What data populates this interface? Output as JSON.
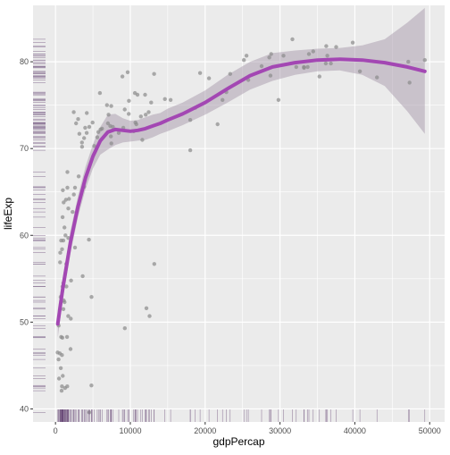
{
  "chart_data": {
    "type": "scatter",
    "title": "",
    "xlabel": "gdpPercap",
    "ylabel": "lifeExp",
    "xlim": [
      -3000,
      52000
    ],
    "ylim": [
      38.5,
      86.5
    ],
    "x_ticks": [
      0,
      10000,
      20000,
      30000,
      40000,
      50000
    ],
    "x_tick_labels": [
      "0",
      "10000",
      "20000",
      "30000",
      "40000",
      "50000"
    ],
    "y_ticks": [
      40,
      50,
      60,
      70,
      80
    ],
    "y_tick_labels": [
      "40",
      "50",
      "60",
      "70",
      "80"
    ],
    "grid": true,
    "legend": "none",
    "colors": {
      "panel": "#ebebeb",
      "grid": "#ffffff",
      "points": "#8a8a8a",
      "smooth_line": "#a347b3",
      "ribbon": "#a090a4",
      "rug": "#5e3c6e",
      "axis_text": "#4d4d4d",
      "axis_title": "#000000"
    },
    "points": [
      {
        "x": 975,
        "y": 43.8
      },
      {
        "x": 5937,
        "y": 76.4
      },
      {
        "x": 6223,
        "y": 72.3
      },
      {
        "x": 4797,
        "y": 42.7
      },
      {
        "x": 12779,
        "y": 75.3
      },
      {
        "x": 34435,
        "y": 81.2
      },
      {
        "x": 36126,
        "y": 79.8
      },
      {
        "x": 29796,
        "y": 75.6
      },
      {
        "x": 1391,
        "y": 64.1
      },
      {
        "x": 33693,
        "y": 79.4
      },
      {
        "x": 1441,
        "y": 56.7
      },
      {
        "x": 3822,
        "y": 65.6
      },
      {
        "x": 7446,
        "y": 74.9
      },
      {
        "x": 12570,
        "y": 50.7
      },
      {
        "x": 9065,
        "y": 72.4
      },
      {
        "x": 10680,
        "y": 73.0
      },
      {
        "x": 1217,
        "y": 52.3
      },
      {
        "x": 430,
        "y": 49.6
      },
      {
        "x": 1713,
        "y": 59.7
      },
      {
        "x": 2042,
        "y": 50.4
      },
      {
        "x": 36319,
        "y": 80.7
      },
      {
        "x": 706,
        "y": 44.7
      },
      {
        "x": 1704,
        "y": 50.7
      },
      {
        "x": 13172,
        "y": 78.6
      },
      {
        "x": 4959,
        "y": 73.0
      },
      {
        "x": 7007,
        "y": 72.9
      },
      {
        "x": 986,
        "y": 65.2
      },
      {
        "x": 278,
        "y": 46.5
      },
      {
        "x": 3633,
        "y": 55.3
      },
      {
        "x": 9645,
        "y": 78.8
      },
      {
        "x": 1544,
        "y": 48.3
      },
      {
        "x": 14619,
        "y": 75.7
      },
      {
        "x": 8948,
        "y": 78.3
      },
      {
        "x": 22833,
        "y": 76.5
      },
      {
        "x": 35278,
        "y": 78.3
      },
      {
        "x": 2082,
        "y": 54.8
      },
      {
        "x": 6025,
        "y": 72.2
      },
      {
        "x": 6873,
        "y": 75.0
      },
      {
        "x": 5581,
        "y": 71.3
      },
      {
        "x": 5728,
        "y": 71.9
      },
      {
        "x": 12154,
        "y": 51.6
      },
      {
        "x": 641,
        "y": 58.0
      },
      {
        "x": 690,
        "y": 52.9
      },
      {
        "x": 33207,
        "y": 79.3
      },
      {
        "x": 30470,
        "y": 80.7
      },
      {
        "x": 13206,
        "y": 56.7
      },
      {
        "x": 753,
        "y": 59.4
      },
      {
        "x": 32170,
        "y": 79.4
      },
      {
        "x": 1327,
        "y": 60.0
      },
      {
        "x": 27538,
        "y": 79.5
      },
      {
        "x": 5186,
        "y": 70.3
      },
      {
        "x": 943,
        "y": 54.1
      },
      {
        "x": 579,
        "y": 46.4
      },
      {
        "x": 1201,
        "y": 60.9
      },
      {
        "x": 3548,
        "y": 70.2
      },
      {
        "x": 39725,
        "y": 82.2
      },
      {
        "x": 18009,
        "y": 73.3
      },
      {
        "x": 36181,
        "y": 81.8
      },
      {
        "x": 2452,
        "y": 64.7
      },
      {
        "x": 3541,
        "y": 70.7
      },
      {
        "x": 11606,
        "y": 71.0
      },
      {
        "x": 4471,
        "y": 59.5
      },
      {
        "x": 40676,
        "y": 78.9
      },
      {
        "x": 25523,
        "y": 80.7
      },
      {
        "x": 28570,
        "y": 80.5
      },
      {
        "x": 7321,
        "y": 72.6
      },
      {
        "x": 31656,
        "y": 82.6
      },
      {
        "x": 4519,
        "y": 72.5
      },
      {
        "x": 1463,
        "y": 54.1
      },
      {
        "x": 1593,
        "y": 67.3
      },
      {
        "x": 23348,
        "y": 78.6
      },
      {
        "x": 47307,
        "y": 77.6
      },
      {
        "x": 10461,
        "y": 72.0
      },
      {
        "x": 1569,
        "y": 42.6
      },
      {
        "x": 414,
        "y": 45.7
      },
      {
        "x": 12057,
        "y": 73.9
      },
      {
        "x": 1044,
        "y": 59.4
      },
      {
        "x": 759,
        "y": 48.3
      },
      {
        "x": 12452,
        "y": 74.2
      },
      {
        "x": 1043,
        "y": 54.5
      },
      {
        "x": 1803,
        "y": 64.2
      },
      {
        "x": 10956,
        "y": 76.2
      },
      {
        "x": 11978,
        "y": 76.2
      },
      {
        "x": 3096,
        "y": 66.8
      },
      {
        "x": 9254,
        "y": 74.5
      },
      {
        "x": 3821,
        "y": 71.2
      },
      {
        "x": 823,
        "y": 42.1
      },
      {
        "x": 944,
        "y": 62.1
      },
      {
        "x": 4811,
        "y": 52.9
      },
      {
        "x": 1091,
        "y": 63.8
      },
      {
        "x": 36798,
        "y": 79.8
      },
      {
        "x": 25185,
        "y": 80.2
      },
      {
        "x": 2749,
        "y": 72.9
      },
      {
        "x": 620,
        "y": 56.9
      },
      {
        "x": 2014,
        "y": 46.9
      },
      {
        "x": 49357,
        "y": 80.2
      },
      {
        "x": 22316,
        "y": 75.6
      },
      {
        "x": 2606,
        "y": 65.5
      },
      {
        "x": 9809,
        "y": 75.5
      },
      {
        "x": 4173,
        "y": 71.8
      },
      {
        "x": 7408,
        "y": 71.4
      },
      {
        "x": 3190,
        "y": 71.7
      },
      {
        "x": 15390,
        "y": 75.6
      },
      {
        "x": 20510,
        "y": 78.1
      },
      {
        "x": 19328,
        "y": 78.7
      },
      {
        "x": 7670,
        "y": 72.5
      },
      {
        "x": 10808,
        "y": 72.8
      },
      {
        "x": 863,
        "y": 46.2
      },
      {
        "x": 1598,
        "y": 65.5
      },
      {
        "x": 21655,
        "y": 72.8
      },
      {
        "x": 1712,
        "y": 63.1
      },
      {
        "x": 9787,
        "y": 74.0
      },
      {
        "x": 862,
        "y": 42.6
      },
      {
        "x": 47143,
        "y": 80.0
      },
      {
        "x": 18678,
        "y": 74.7
      },
      {
        "x": 25768,
        "y": 77.9
      },
      {
        "x": 926,
        "y": 48.2
      },
      {
        "x": 9270,
        "y": 49.3
      },
      {
        "x": 28821,
        "y": 80.9
      },
      {
        "x": 3970,
        "y": 72.4
      },
      {
        "x": 2602,
        "y": 58.6
      },
      {
        "x": 4513,
        "y": 39.6
      },
      {
        "x": 33860,
        "y": 80.9
      },
      {
        "x": 37506,
        "y": 81.7
      },
      {
        "x": 4185,
        "y": 74.1
      },
      {
        "x": 28718,
        "y": 78.4
      },
      {
        "x": 1107,
        "y": 52.5
      },
      {
        "x": 7458,
        "y": 70.6
      },
      {
        "x": 882,
        "y": 58.4
      },
      {
        "x": 18009,
        "y": 69.8
      },
      {
        "x": 7092,
        "y": 73.9
      },
      {
        "x": 8458,
        "y": 71.8
      },
      {
        "x": 1056,
        "y": 51.5
      },
      {
        "x": 33203,
        "y": 79.4
      },
      {
        "x": 42952,
        "y": 78.2
      },
      {
        "x": 10611,
        "y": 76.4
      },
      {
        "x": 11416,
        "y": 73.7
      },
      {
        "x": 2442,
        "y": 74.2
      },
      {
        "x": 3025,
        "y": 73.4
      },
      {
        "x": 2281,
        "y": 62.7
      },
      {
        "x": 1271,
        "y": 42.4
      },
      {
        "x": 470,
        "y": 43.5
      }
    ],
    "smooth": {
      "x": [
        300,
        1000,
        2000,
        3000,
        4000,
        5000,
        6000,
        7000,
        8000,
        9000,
        10000,
        11000,
        12000,
        13000,
        14000,
        15000,
        17000,
        20000,
        23000,
        26000,
        29000,
        32000,
        35000,
        38000,
        41000,
        44000,
        47000,
        49357
      ],
      "y": [
        49.8,
        54.0,
        59.2,
        63.3,
        66.6,
        69.1,
        70.9,
        71.9,
        72.2,
        72.1,
        72.0,
        72.1,
        72.3,
        72.6,
        72.9,
        73.3,
        74.0,
        75.3,
        76.9,
        78.4,
        79.4,
        79.9,
        80.2,
        80.3,
        80.2,
        79.9,
        79.4,
        78.9
      ],
      "se_lower": [
        48.2,
        52.7,
        57.9,
        62.1,
        65.3,
        67.7,
        69.3,
        69.9,
        70.4,
        70.7,
        70.8,
        70.9,
        71.0,
        71.3,
        71.7,
        72.0,
        72.7,
        73.9,
        75.3,
        76.8,
        77.8,
        78.5,
        78.9,
        79.0,
        78.5,
        77.2,
        74.3,
        71.7
      ],
      "se_upper": [
        51.4,
        55.3,
        60.5,
        64.5,
        67.9,
        70.5,
        72.5,
        73.9,
        74.0,
        73.5,
        73.2,
        73.3,
        73.6,
        73.9,
        74.1,
        74.6,
        75.3,
        76.7,
        78.5,
        80.0,
        81.0,
        81.3,
        81.5,
        81.6,
        81.9,
        82.6,
        84.5,
        86.2
      ]
    },
    "rug": true
  }
}
